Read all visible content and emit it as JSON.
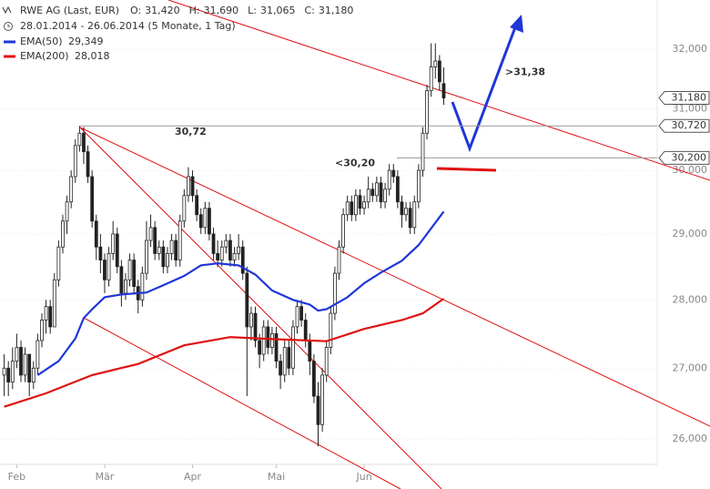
{
  "chart_data": {
    "type": "candlestick",
    "title": "RWE AG (Last, EUR)",
    "quote": [
      {
        "name": "O:",
        "value": 31.42,
        "label": "31,420"
      },
      {
        "name": "H:",
        "value": 31.69,
        "label": "31,690"
      },
      {
        "name": "L:",
        "value": 31.065,
        "label": "31,065"
      },
      {
        "name": "C:",
        "value": 31.18,
        "label": "31,180"
      }
    ],
    "period": "28.01.2014 - 26.06.2014 (5 Monate, 1 Tag)",
    "ohlc": [
      [
        26.9,
        27.2,
        26.6,
        27.0
      ],
      [
        27.0,
        27.1,
        26.6,
        26.8
      ],
      [
        26.8,
        27.3,
        26.7,
        27.1
      ],
      [
        27.1,
        27.5,
        27.0,
        27.3
      ],
      [
        27.3,
        27.4,
        26.8,
        26.9
      ],
      [
        26.9,
        27.3,
        26.8,
        27.2
      ],
      [
        27.2,
        27.2,
        26.6,
        26.8
      ],
      [
        26.8,
        27.1,
        26.7,
        27.0
      ],
      [
        27.0,
        27.5,
        26.9,
        27.4
      ],
      [
        27.4,
        27.8,
        27.3,
        27.7
      ],
      [
        27.7,
        28.0,
        27.5,
        27.9
      ],
      [
        27.9,
        28.0,
        27.5,
        27.6
      ],
      [
        27.6,
        28.4,
        27.6,
        28.3
      ],
      [
        28.3,
        28.9,
        28.2,
        28.8
      ],
      [
        28.8,
        29.3,
        28.7,
        29.2
      ],
      [
        29.2,
        29.6,
        29.0,
        29.5
      ],
      [
        29.5,
        30.0,
        29.4,
        29.9
      ],
      [
        29.9,
        30.5,
        29.8,
        30.4
      ],
      [
        30.4,
        30.72,
        30.3,
        30.6
      ],
      [
        30.6,
        30.7,
        30.1,
        30.3
      ],
      [
        30.3,
        30.4,
        29.8,
        29.9
      ],
      [
        29.9,
        30.0,
        29.1,
        29.2
      ],
      [
        29.2,
        29.3,
        28.6,
        28.8
      ],
      [
        28.8,
        29.0,
        28.4,
        28.6
      ],
      [
        28.6,
        28.7,
        28.1,
        28.3
      ],
      [
        28.3,
        28.8,
        28.2,
        28.7
      ],
      [
        28.7,
        29.2,
        28.6,
        29.0
      ],
      [
        29.0,
        29.1,
        28.4,
        28.5
      ],
      [
        28.5,
        28.6,
        27.9,
        28.1
      ],
      [
        28.1,
        28.4,
        28.0,
        28.3
      ],
      [
        28.3,
        28.7,
        28.2,
        28.6
      ],
      [
        28.6,
        28.7,
        28.1,
        28.2
      ],
      [
        28.2,
        28.3,
        27.8,
        28.0
      ],
      [
        28.0,
        28.5,
        27.9,
        28.4
      ],
      [
        28.4,
        29.2,
        28.3,
        28.9
      ],
      [
        28.9,
        29.3,
        28.8,
        29.1
      ],
      [
        29.1,
        29.2,
        28.6,
        28.7
      ],
      [
        28.7,
        28.9,
        28.6,
        28.8
      ],
      [
        28.8,
        28.9,
        28.4,
        28.5
      ],
      [
        28.5,
        28.8,
        28.4,
        28.7
      ],
      [
        28.7,
        29.0,
        28.6,
        28.9
      ],
      [
        28.9,
        29.0,
        28.5,
        28.6
      ],
      [
        28.6,
        29.3,
        28.5,
        29.2
      ],
      [
        29.2,
        29.7,
        29.1,
        29.6
      ],
      [
        29.6,
        30.05,
        29.5,
        29.9
      ],
      [
        29.9,
        30.0,
        29.5,
        29.6
      ],
      [
        29.6,
        29.7,
        29.2,
        29.3
      ],
      [
        29.3,
        29.4,
        29.0,
        29.1
      ],
      [
        29.1,
        29.5,
        29.0,
        29.4
      ],
      [
        29.4,
        29.5,
        28.9,
        29.0
      ],
      [
        29.0,
        29.1,
        28.6,
        28.7
      ],
      [
        28.7,
        28.9,
        28.5,
        28.6
      ],
      [
        28.6,
        28.9,
        28.5,
        28.8
      ],
      [
        28.8,
        29.0,
        28.7,
        28.9
      ],
      [
        28.9,
        29.0,
        28.5,
        28.6
      ],
      [
        28.6,
        28.8,
        28.5,
        28.7
      ],
      [
        28.7,
        29.0,
        28.6,
        28.8
      ],
      [
        28.8,
        28.9,
        28.3,
        28.4
      ],
      [
        28.4,
        28.5,
        26.6,
        27.6
      ],
      [
        27.6,
        27.9,
        27.4,
        27.8
      ],
      [
        27.8,
        27.9,
        27.3,
        27.4
      ],
      [
        27.4,
        27.5,
        27.0,
        27.2
      ],
      [
        27.2,
        27.7,
        27.1,
        27.6
      ],
      [
        27.6,
        27.7,
        27.2,
        27.3
      ],
      [
        27.3,
        27.6,
        27.2,
        27.5
      ],
      [
        27.5,
        27.6,
        27.0,
        27.1
      ],
      [
        27.1,
        27.2,
        26.7,
        26.9
      ],
      [
        26.9,
        27.4,
        26.8,
        27.3
      ],
      [
        27.3,
        27.4,
        26.9,
        27.0
      ],
      [
        27.0,
        27.7,
        26.9,
        27.6
      ],
      [
        27.6,
        28.0,
        27.5,
        27.9
      ],
      [
        27.9,
        28.0,
        27.6,
        27.7
      ],
      [
        27.7,
        27.8,
        27.3,
        27.4
      ],
      [
        27.4,
        27.5,
        26.9,
        27.1
      ],
      [
        27.1,
        27.2,
        26.5,
        26.6
      ],
      [
        26.6,
        26.8,
        25.9,
        26.2
      ],
      [
        26.2,
        27.0,
        26.1,
        26.9
      ],
      [
        26.9,
        27.4,
        26.8,
        27.3
      ],
      [
        27.3,
        27.9,
        27.2,
        27.8
      ],
      [
        27.8,
        28.5,
        27.7,
        28.4
      ],
      [
        28.4,
        28.9,
        28.3,
        28.8
      ],
      [
        28.8,
        29.4,
        28.7,
        29.3
      ],
      [
        29.3,
        29.6,
        29.2,
        29.5
      ],
      [
        29.5,
        29.6,
        29.2,
        29.3
      ],
      [
        29.3,
        29.7,
        29.2,
        29.6
      ],
      [
        29.6,
        29.7,
        29.3,
        29.4
      ],
      [
        29.4,
        29.6,
        29.3,
        29.5
      ],
      [
        29.5,
        29.9,
        29.4,
        29.7
      ],
      [
        29.7,
        29.8,
        29.5,
        29.6
      ],
      [
        29.6,
        29.9,
        29.5,
        29.8
      ],
      [
        29.8,
        29.9,
        29.4,
        29.5
      ],
      [
        29.5,
        29.8,
        29.4,
        29.7
      ],
      [
        29.7,
        30.1,
        29.6,
        30.0
      ],
      [
        30.0,
        30.1,
        29.8,
        29.9
      ],
      [
        29.9,
        30.0,
        29.4,
        29.5
      ],
      [
        29.5,
        29.6,
        29.1,
        29.3
      ],
      [
        29.3,
        29.5,
        29.2,
        29.4
      ],
      [
        29.4,
        29.5,
        29.0,
        29.1
      ],
      [
        29.1,
        29.6,
        29.0,
        29.5
      ],
      [
        29.5,
        30.1,
        29.4,
        30.0
      ],
      [
        30.0,
        30.7,
        29.9,
        30.6
      ],
      [
        30.6,
        31.4,
        30.5,
        31.3
      ],
      [
        31.3,
        32.1,
        31.2,
        31.7
      ],
      [
        31.7,
        32.1,
        31.5,
        31.8
      ],
      [
        31.8,
        31.9,
        31.3,
        31.45
      ],
      [
        31.42,
        31.69,
        31.065,
        31.18
      ]
    ],
    "series": [
      {
        "name": "EMA(50)",
        "color": "#1f36d8",
        "last_label": "29,349",
        "x": [
          8,
          13,
          17,
          19,
          21,
          24,
          28,
          34,
          38,
          43,
          47,
          51,
          56,
          60,
          64,
          69,
          73,
          75,
          77,
          82,
          86,
          90,
          95,
          99,
          105
        ],
        "values": [
          26.9,
          27.1,
          27.43,
          27.73,
          27.86,
          28.04,
          28.08,
          28.11,
          28.22,
          28.36,
          28.52,
          28.55,
          28.52,
          28.38,
          28.14,
          28.0,
          27.93,
          27.84,
          27.86,
          28.04,
          28.25,
          28.41,
          28.59,
          28.83,
          29.349
        ]
      },
      {
        "name": "EMA(200)",
        "color": "#e01010",
        "last_label": "28,018",
        "x": [
          0,
          10,
          21,
          32,
          43,
          54,
          64,
          77,
          86,
          95,
          100,
          105
        ],
        "values": [
          26.45,
          26.64,
          26.9,
          27.06,
          27.33,
          27.45,
          27.42,
          27.39,
          27.57,
          27.7,
          27.8,
          28.018
        ]
      }
    ],
    "log_scale": true,
    "ylim": [
      25.65,
      32.85
    ],
    "yticks": [
      {
        "value": 26,
        "label": "26,000"
      },
      {
        "value": 27,
        "label": "27,000"
      },
      {
        "value": 28,
        "label": "28,000"
      },
      {
        "value": 29,
        "label": "29,000"
      },
      {
        "value": 30,
        "label": "30,000"
      },
      {
        "value": 31,
        "label": "31,000"
      },
      {
        "value": 32,
        "label": "32,000"
      }
    ],
    "xlim": [
      -1,
      156
    ],
    "xticks": [
      {
        "value": 3,
        "label": "Feb"
      },
      {
        "value": 24,
        "label": "Mär"
      },
      {
        "value": 45,
        "label": "Apr"
      },
      {
        "value": 65,
        "label": "Mai"
      },
      {
        "value": 86,
        "label": "Jun"
      }
    ],
    "price_markers": [
      {
        "value": 31.18,
        "label": "31,180"
      },
      {
        "value": 30.72,
        "label": "30,720"
      },
      {
        "value": 30.2,
        "label": "30,200"
      }
    ],
    "annotations": [
      {
        "value": 30.72,
        "label": "30,72",
        "color": "#8a8a8a"
      },
      {
        "value": 30.2,
        "label": "<30,20",
        "color": "#e01010"
      },
      {
        "value": 31.38,
        "label": ">31,38",
        "color": "#1f36d8"
      }
    ]
  }
}
